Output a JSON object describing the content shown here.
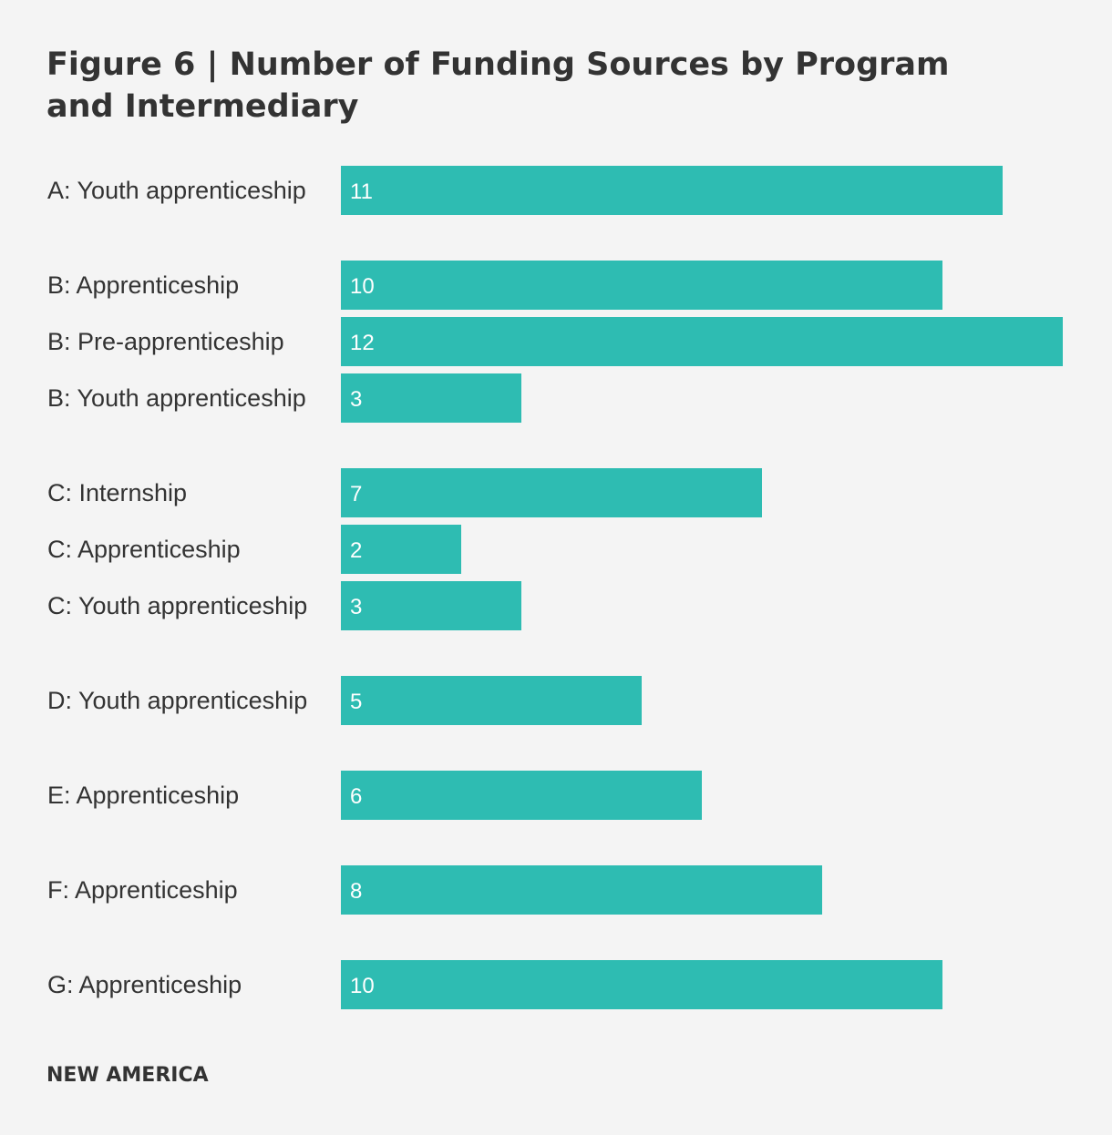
{
  "title": "Figure 6 | Number of Funding Sources by Program and Intermediary",
  "footer": "NEW AMERICA",
  "colors": {
    "bar": "#2ebcb2",
    "background": "#f4f4f4",
    "text": "#333333",
    "value_text": "#ffffff"
  },
  "chart_data": {
    "type": "bar",
    "orientation": "horizontal",
    "title": "Figure 6 | Number of Funding Sources by Program and Intermediary",
    "xlabel": "",
    "ylabel": "",
    "xlim": [
      0,
      12
    ],
    "grid": false,
    "legend": "none",
    "groups": [
      {
        "name": "A",
        "items": [
          {
            "label": "A: Youth apprenticeship",
            "value": 11
          }
        ]
      },
      {
        "name": "B",
        "items": [
          {
            "label": "B: Apprenticeship",
            "value": 10
          },
          {
            "label": "B: Pre-apprenticeship",
            "value": 12
          },
          {
            "label": "B: Youth apprenticeship",
            "value": 3
          }
        ]
      },
      {
        "name": "C",
        "items": [
          {
            "label": "C: Internship",
            "value": 7
          },
          {
            "label": "C: Apprenticeship",
            "value": 2
          },
          {
            "label": "C: Youth apprenticeship",
            "value": 3
          }
        ]
      },
      {
        "name": "D",
        "items": [
          {
            "label": "D: Youth apprenticeship",
            "value": 5
          }
        ]
      },
      {
        "name": "E",
        "items": [
          {
            "label": "E: Apprenticeship",
            "value": 6
          }
        ]
      },
      {
        "name": "F",
        "items": [
          {
            "label": "F: Apprenticeship",
            "value": 8
          }
        ]
      },
      {
        "name": "G",
        "items": [
          {
            "label": "G: Apprenticeship",
            "value": 10
          }
        ]
      }
    ]
  }
}
